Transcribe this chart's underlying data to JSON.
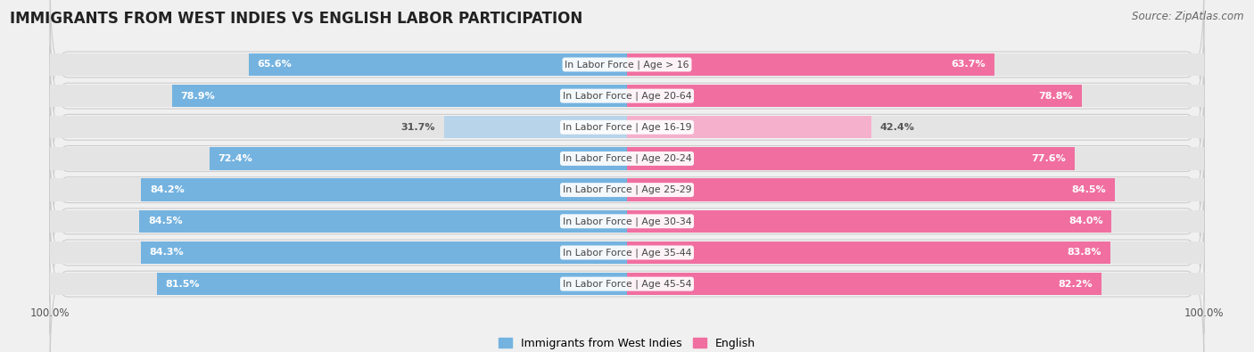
{
  "title": "IMMIGRANTS FROM WEST INDIES VS ENGLISH LABOR PARTICIPATION",
  "source": "Source: ZipAtlas.com",
  "categories": [
    "In Labor Force | Age > 16",
    "In Labor Force | Age 20-64",
    "In Labor Force | Age 16-19",
    "In Labor Force | Age 20-24",
    "In Labor Force | Age 25-29",
    "In Labor Force | Age 30-34",
    "In Labor Force | Age 35-44",
    "In Labor Force | Age 45-54"
  ],
  "west_indies_values": [
    65.6,
    78.9,
    31.7,
    72.4,
    84.2,
    84.5,
    84.3,
    81.5
  ],
  "english_values": [
    63.7,
    78.8,
    42.4,
    77.6,
    84.5,
    84.0,
    83.8,
    82.2
  ],
  "west_indies_color": "#74b3e0",
  "west_indies_color_light": "#b8d4ea",
  "english_color": "#f06fa0",
  "english_color_light": "#f5b0cc",
  "background_color": "#f0f0f0",
  "row_bg_color": "#e8e8e8",
  "row_bg_inner": "#f8f8f8",
  "max_value": 100.0,
  "bar_height": 0.72,
  "legend_label_west": "Immigrants from West Indies",
  "legend_label_english": "English",
  "title_fontsize": 12,
  "source_fontsize": 8.5,
  "value_fontsize": 8,
  "category_fontsize": 7.8,
  "tick_fontsize": 8.5
}
